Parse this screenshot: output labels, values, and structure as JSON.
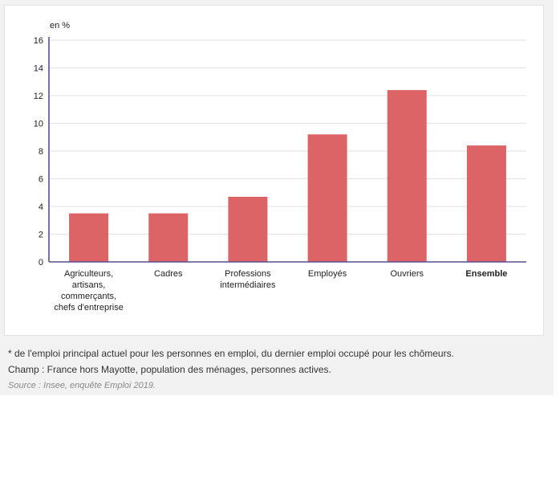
{
  "chart_data": {
    "type": "bar",
    "unit_label": "en %",
    "categories": [
      [
        "Agriculteurs,",
        "artisans,",
        "commerçants,",
        "chefs d'entreprise"
      ],
      [
        "Cadres"
      ],
      [
        "Professions",
        "intermédiaires"
      ],
      [
        "Employés"
      ],
      [
        "Ouvriers"
      ],
      [
        "Ensemble"
      ]
    ],
    "bold_categories": [
      5
    ],
    "values": [
      3.5,
      3.5,
      4.7,
      9.2,
      12.4,
      8.4
    ],
    "ylim": [
      0,
      16
    ],
    "yticks": [
      0,
      2,
      4,
      6,
      8,
      10,
      12,
      14,
      16
    ],
    "grid": true,
    "bar_color": "#dc6366",
    "axis_color": "#5a4e8c",
    "grid_color": "#e2e2e2"
  },
  "notes": {
    "line1": "* de l'emploi principal actuel pour les personnes en emploi, du dernier emploi occupé pour les chômeurs.",
    "line2": "Champ : France hors Mayotte, population des ménages, personnes actives.",
    "source": "Source : Insee, enquête Emploi 2019."
  }
}
